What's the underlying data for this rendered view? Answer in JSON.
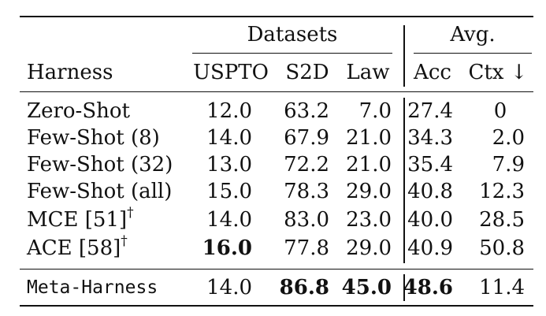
{
  "table": {
    "group_headers": {
      "datasets": "Datasets",
      "avg": "Avg."
    },
    "columns": [
      "Harness",
      "USPTO",
      "S2D",
      "Law",
      "Acc",
      "Ctx ↓"
    ],
    "rows": [
      {
        "name": "Zero-Shot",
        "dagger": "",
        "uspto": "12.0",
        "s2d": "63.2",
        "law": "7.0",
        "acc": "27.4",
        "ctx": "0"
      },
      {
        "name": "Few-Shot (8)",
        "dagger": "",
        "uspto": "14.0",
        "s2d": "67.9",
        "law": "21.0",
        "acc": "34.3",
        "ctx": "2.0"
      },
      {
        "name": "Few-Shot (32)",
        "dagger": "",
        "uspto": "13.0",
        "s2d": "72.2",
        "law": "21.0",
        "acc": "35.4",
        "ctx": "7.9"
      },
      {
        "name": "Few-Shot (all)",
        "dagger": "",
        "uspto": "15.0",
        "s2d": "78.3",
        "law": "29.0",
        "acc": "40.8",
        "ctx": "12.3"
      },
      {
        "name": "MCE [51]",
        "dagger": "†",
        "uspto": "14.0",
        "s2d": "83.0",
        "law": "23.0",
        "acc": "40.0",
        "ctx": "28.5"
      },
      {
        "name": "ACE [58]",
        "dagger": "†",
        "uspto": "16.0",
        "s2d": "77.8",
        "law": "29.0",
        "acc": "40.9",
        "ctx": "50.8"
      }
    ],
    "final_row": {
      "name": "Meta-Harness",
      "uspto": "14.0",
      "s2d": "86.8",
      "law": "45.0",
      "acc": "48.6",
      "ctx": "11.4"
    }
  }
}
